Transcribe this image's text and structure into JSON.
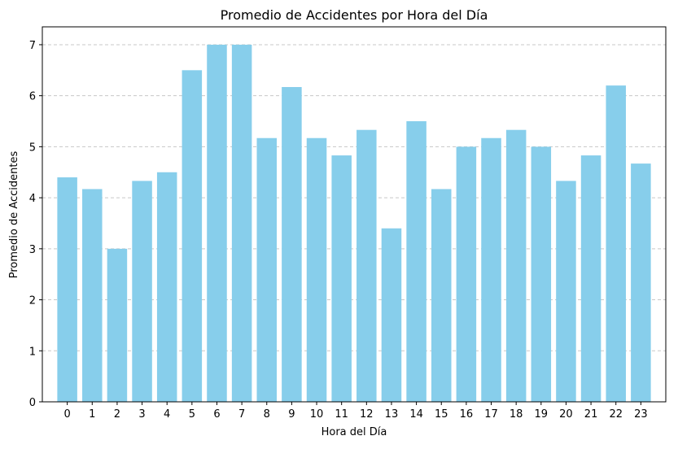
{
  "chart_data": {
    "type": "bar",
    "title": "Promedio de Accidentes por Hora del Día",
    "xlabel": "Hora del Día",
    "ylabel": "Promedio de Accidentes",
    "categories": [
      "0",
      "1",
      "2",
      "3",
      "4",
      "5",
      "6",
      "7",
      "8",
      "9",
      "10",
      "11",
      "12",
      "13",
      "14",
      "15",
      "16",
      "17",
      "18",
      "19",
      "20",
      "21",
      "22",
      "23"
    ],
    "values": [
      4.4,
      4.17,
      3.0,
      4.33,
      4.5,
      6.5,
      7.0,
      7.0,
      5.17,
      6.17,
      5.17,
      4.83,
      5.33,
      3.4,
      5.5,
      4.17,
      5.0,
      5.17,
      5.33,
      5.0,
      4.33,
      4.83,
      6.2,
      4.67
    ],
    "ylim": [
      0,
      7.35
    ],
    "yticks": [
      0,
      1,
      2,
      3,
      4,
      5,
      6,
      7
    ],
    "grid": "y-dashed",
    "bar_color": "#87ceeb",
    "grid_color": "#c8c8c8",
    "axis_color": "#000000"
  }
}
